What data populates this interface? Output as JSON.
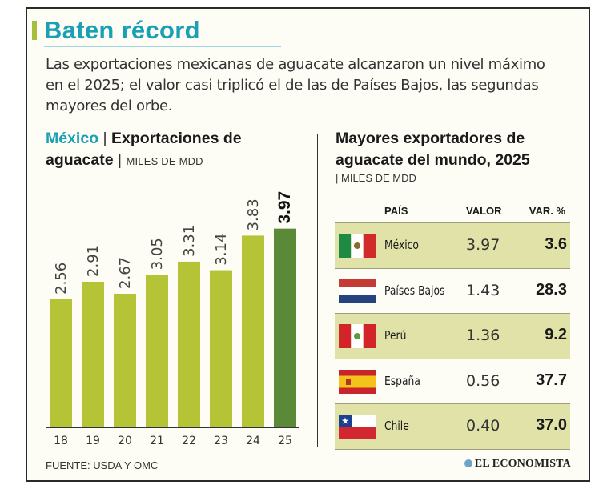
{
  "title": "Baten récord",
  "subtitle": "Las exportaciones mexicanas de aguacate alcanzaron un nivel máximo en el 2025; el valor casi triplicó el de las de Países Bajos, las segundas mayores del orbe.",
  "colors": {
    "accent": "#1aa0b5",
    "title_bar": "#a7be3c",
    "bar": "#b5c337",
    "bar_highlight": "#5a8a37",
    "table_highlight": "#e0e2a7"
  },
  "left_chart": {
    "country": "México",
    "separator": "|",
    "title": "Exportaciones de aguacate",
    "units": "MILES DE MDD"
  },
  "right_table": {
    "title": "Mayores exportadores de aguacate del mundo, 2025",
    "separator": "|",
    "units": "MILES DE MDD",
    "headers": {
      "country": "PAÍS",
      "value": "VALOR",
      "change": "VAR. %"
    },
    "rows": [
      {
        "country": "México",
        "value": "3.97",
        "change": "3.6",
        "flag_icon": "mexico-flag-icon",
        "highlight": true
      },
      {
        "country": "Países Bajos",
        "value": "1.43",
        "change": "28.3",
        "flag_icon": "netherlands-flag-icon",
        "highlight": false
      },
      {
        "country": "Perú",
        "value": "1.36",
        "change": "9.2",
        "flag_icon": "peru-flag-icon",
        "highlight": true
      },
      {
        "country": "España",
        "value": "0.56",
        "change": "37.7",
        "flag_icon": "spain-flag-icon",
        "highlight": false
      },
      {
        "country": "Chile",
        "value": "0.40",
        "change": "37.0",
        "flag_icon": "chile-flag-icon",
        "highlight": true
      }
    ]
  },
  "chart_data": {
    "type": "bar",
    "categories": [
      "18",
      "19",
      "20",
      "21",
      "22",
      "23",
      "24",
      "25"
    ],
    "values": [
      2.56,
      2.91,
      2.67,
      3.05,
      3.31,
      3.14,
      3.83,
      3.97
    ],
    "labels": [
      "2.56",
      "2.91",
      "2.67",
      "3.05",
      "3.31",
      "3.14",
      "3.83",
      "3.97"
    ],
    "highlight_index": 7,
    "title": "Exportaciones de aguacate",
    "ylabel": "MILES DE MDD",
    "ylim": [
      0,
      4.3
    ],
    "grid": false
  },
  "source": "FUENTE: USDA Y OMC",
  "brand": "EL ECONOMISTA"
}
